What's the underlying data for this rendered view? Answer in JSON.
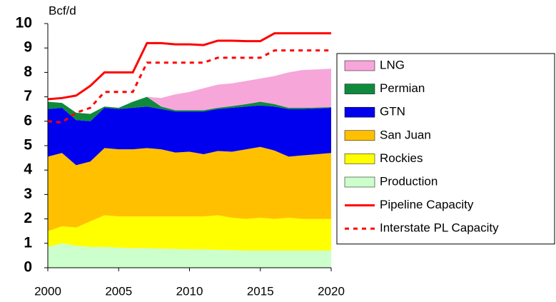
{
  "chart_data": {
    "type": "area",
    "y_label": "Bcf/d",
    "x": [
      2000,
      2001,
      2002,
      2003,
      2004,
      2005,
      2006,
      2007,
      2008,
      2009,
      2010,
      2011,
      2012,
      2013,
      2014,
      2015,
      2016,
      2017,
      2018,
      2019,
      2020
    ],
    "xlim": [
      2000,
      2020
    ],
    "xticks": [
      2000,
      2005,
      2010,
      2015,
      2020
    ],
    "ylim": [
      0,
      10
    ],
    "yticks": [
      0,
      1,
      2,
      3,
      4,
      5,
      6,
      7,
      8,
      9,
      10
    ],
    "legend": "right",
    "series": [
      {
        "name": "LNG",
        "type": "area",
        "color": "#f7a6d9",
        "values": [
          0,
          0,
          0,
          0,
          0,
          0,
          0,
          0,
          0.35,
          0.65,
          0.75,
          0.9,
          0.95,
          0.93,
          0.95,
          0.95,
          1.15,
          1.45,
          1.55,
          1.56,
          1.57
        ]
      },
      {
        "name": "Permian",
        "type": "area",
        "color": "#0f8a3c",
        "values": [
          0.3,
          0.2,
          0.3,
          0.3,
          0.05,
          0.05,
          0.25,
          0.4,
          0.1,
          0.05,
          0.05,
          0.05,
          0.05,
          0.07,
          0.1,
          0.15,
          0.1,
          0.05,
          0.05,
          0.04,
          0.03
        ]
      },
      {
        "name": "GTN",
        "type": "area",
        "color": "#0000ee",
        "values": [
          1.95,
          1.85,
          1.85,
          1.65,
          1.65,
          1.65,
          1.7,
          1.7,
          1.65,
          1.68,
          1.65,
          1.75,
          1.72,
          1.8,
          1.75,
          1.7,
          1.8,
          1.95,
          1.9,
          1.87,
          1.85
        ]
      },
      {
        "name": "San Juan",
        "type": "area",
        "color": "#ffc000",
        "values": [
          3.05,
          3.0,
          2.55,
          2.45,
          2.75,
          2.75,
          2.75,
          2.8,
          2.75,
          2.62,
          2.65,
          2.55,
          2.63,
          2.7,
          2.85,
          2.9,
          2.8,
          2.5,
          2.6,
          2.65,
          2.7
        ]
      },
      {
        "name": "Rockies",
        "type": "area",
        "color": "#ffff00",
        "values": [
          0.65,
          0.7,
          0.75,
          1.05,
          1.3,
          1.28,
          1.3,
          1.3,
          1.32,
          1.33,
          1.35,
          1.35,
          1.42,
          1.33,
          1.3,
          1.35,
          1.3,
          1.35,
          1.3,
          1.3,
          1.3
        ]
      },
      {
        "name": "Production",
        "type": "area",
        "color": "#ccffcc",
        "values": [
          0.85,
          1.0,
          0.9,
          0.85,
          0.85,
          0.82,
          0.8,
          0.8,
          0.78,
          0.77,
          0.75,
          0.75,
          0.73,
          0.72,
          0.7,
          0.7,
          0.7,
          0.7,
          0.7,
          0.7,
          0.7
        ]
      },
      {
        "name": "Pipeline Capacity",
        "type": "line",
        "color": "#ff0000",
        "values": [
          6.9,
          6.95,
          7.05,
          7.45,
          8.0,
          8.0,
          8.0,
          9.2,
          9.2,
          9.15,
          9.15,
          9.12,
          9.3,
          9.3,
          9.28,
          9.28,
          9.6,
          9.6,
          9.6,
          9.6,
          9.6
        ]
      },
      {
        "name": "Interstate PL Capacity",
        "type": "line",
        "dashed": true,
        "color": "#ff0000",
        "values": [
          6.0,
          5.95,
          6.35,
          6.55,
          7.2,
          7.2,
          7.2,
          8.4,
          8.4,
          8.4,
          8.4,
          8.4,
          8.6,
          8.6,
          8.6,
          8.6,
          8.9,
          8.9,
          8.9,
          8.9,
          8.9
        ]
      }
    ]
  }
}
